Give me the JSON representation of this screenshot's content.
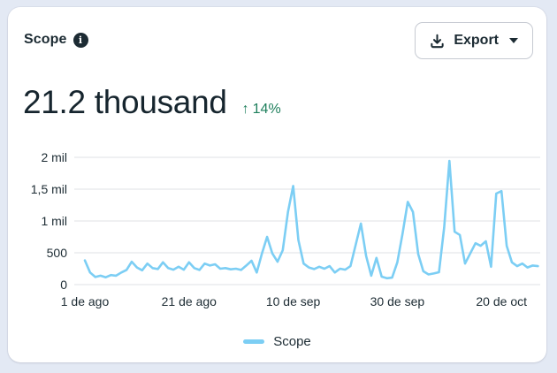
{
  "page": {
    "background": "#e3e9f4"
  },
  "card": {
    "title": "Scope",
    "export_button": {
      "label": "Export"
    },
    "metric": {
      "value": "21.2 thousand",
      "delta": "14%",
      "delta_direction": "up"
    }
  },
  "icons": {
    "arrow_up": "↑",
    "info": "i"
  },
  "colors": {
    "line": "#7ccef4",
    "positive": "#1e7f5c",
    "text_dark": "#1c2b33",
    "gridline": "#e5e7eb"
  },
  "chart_data": {
    "type": "line",
    "title": "Scope",
    "x_unit": "day",
    "x_tick_labels": [
      "1 de ago",
      "21 de ago",
      "10 de sep",
      "30 de sep",
      "20 de oct"
    ],
    "x_tick_indices": [
      0,
      20,
      40,
      60,
      80
    ],
    "y_tick_labels": [
      "0",
      "500",
      "1 mil",
      "1,5 mil",
      "2 mil"
    ],
    "y_tick_values": [
      0,
      500,
      1000,
      1500,
      2000
    ],
    "ylim": [
      0,
      2000
    ],
    "grid": true,
    "legend": {
      "position": "bottom",
      "entries": [
        "Scope"
      ]
    },
    "series": [
      {
        "name": "Scope",
        "color": "#7ccef4",
        "values": [
          380,
          190,
          120,
          140,
          115,
          150,
          140,
          190,
          230,
          360,
          270,
          225,
          330,
          260,
          245,
          350,
          260,
          235,
          280,
          235,
          350,
          260,
          230,
          330,
          300,
          320,
          250,
          260,
          240,
          250,
          230,
          300,
          375,
          190,
          490,
          750,
          490,
          360,
          540,
          1140,
          1550,
          700,
          330,
          270,
          245,
          280,
          250,
          290,
          190,
          250,
          235,
          290,
          625,
          960,
          450,
          140,
          420,
          125,
          100,
          110,
          350,
          800,
          1300,
          1140,
          480,
          210,
          160,
          175,
          195,
          900,
          1945,
          830,
          780,
          330,
          490,
          650,
          610,
          680,
          280,
          1430,
          1470,
          610,
          350,
          290,
          330,
          270,
          300,
          290
        ]
      }
    ]
  }
}
